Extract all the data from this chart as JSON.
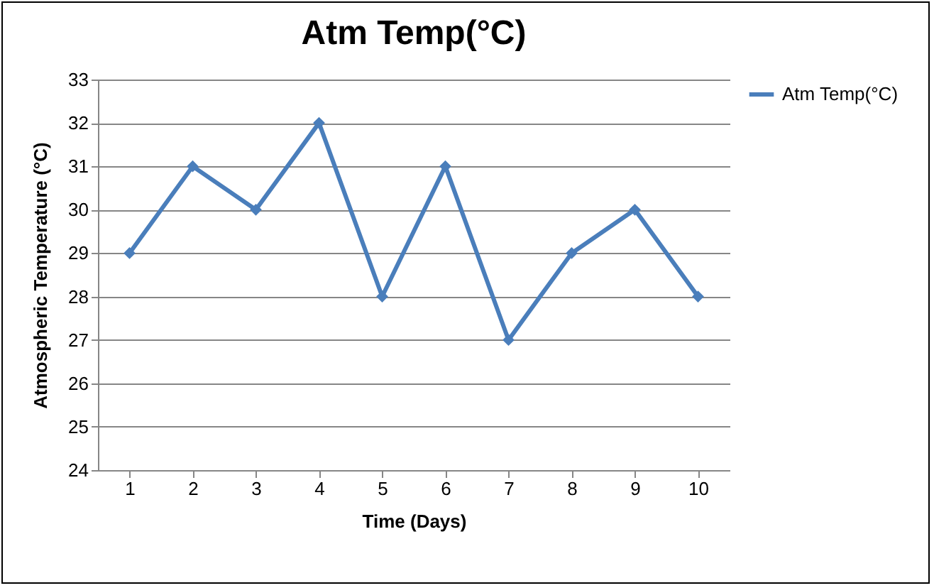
{
  "chart_data": {
    "type": "line",
    "title": "Atm Temp(°C)",
    "xlabel": "Time (Days)",
    "ylabel": "Atmospheric Temperature (°C)",
    "categories": [
      "1",
      "2",
      "3",
      "4",
      "5",
      "6",
      "7",
      "8",
      "9",
      "10"
    ],
    "series": [
      {
        "name": "Atm Temp(°C)",
        "color": "#4a7ebb",
        "values": [
          29,
          31,
          30,
          32,
          28,
          31,
          27,
          29,
          30,
          28
        ]
      }
    ],
    "ylim": [
      24,
      33
    ],
    "yticks": [
      24,
      25,
      26,
      27,
      28,
      29,
      30,
      31,
      32,
      33
    ],
    "grid": "y",
    "legend": "right",
    "marker": "diamond",
    "line_style": "solid"
  }
}
